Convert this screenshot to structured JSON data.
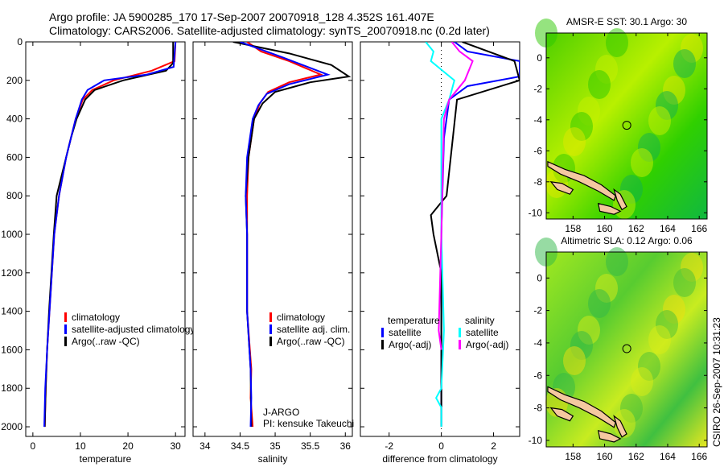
{
  "title_line1": "Argo profile: JA 5900285_170 17-Sep-2007 20070918_128 4.352S 161.407E",
  "title_line2": "Climatology: CARS2006. Satellite-adjusted climatology: synTS_20070918.nc (0.2d later)",
  "footer": "CSIRO 26-Sep-2007 10:31:23",
  "colors": {
    "red": "#ff0000",
    "blue": "#0000ff",
    "black": "#000000",
    "cyan": "#00ffff",
    "magenta": "#ff00ff",
    "land": "#f5c8a0"
  },
  "chart_data": [
    {
      "type": "line",
      "xlabel": "temperature",
      "ylabel": "",
      "xlim": [
        -1.5,
        32
      ],
      "ylim": [
        2050,
        0
      ],
      "xticks": [
        0,
        10,
        20,
        30
      ],
      "yticks": [
        0,
        200,
        400,
        600,
        800,
        1000,
        1200,
        1400,
        1600,
        1800,
        2000
      ],
      "legend": [
        "climatology",
        "satellite-adjusted climatology",
        "Argo(..raw -QC)"
      ],
      "series": [
        {
          "name": "climatology",
          "color": "#ff0000",
          "points": [
            [
              30,
              0
            ],
            [
              29.8,
              100
            ],
            [
              25,
              150
            ],
            [
              17,
              200
            ],
            [
              12.5,
              250
            ],
            [
              10.5,
              300
            ],
            [
              9,
              400
            ],
            [
              8,
              500
            ],
            [
              7,
              600
            ],
            [
              5.5,
              800
            ],
            [
              4.5,
              1000
            ],
            [
              4,
              1200
            ],
            [
              3.5,
              1400
            ],
            [
              3,
              1600
            ],
            [
              2.7,
              1800
            ],
            [
              2.5,
              2000
            ]
          ]
        },
        {
          "name": "Argo(..raw -QC)",
          "color": "#000000",
          "points": [
            [
              29.5,
              0
            ],
            [
              29.5,
              110
            ],
            [
              28,
              150
            ],
            [
              19,
              200
            ],
            [
              13,
              250
            ],
            [
              11,
              300
            ],
            [
              9.2,
              400
            ],
            [
              8,
              500
            ],
            [
              7,
              600
            ],
            [
              5,
              800
            ],
            [
              4.4,
              1000
            ],
            [
              3.9,
              1200
            ],
            [
              3.4,
              1400
            ],
            [
              3,
              1600
            ],
            [
              2.7,
              1800
            ],
            [
              2.5,
              2000
            ]
          ]
        },
        {
          "name": "satellite-adjusted climatology",
          "color": "#0000ff",
          "points": [
            [
              30,
              0
            ],
            [
              29.6,
              130
            ],
            [
              24,
              170
            ],
            [
              15,
              200
            ],
            [
              11.5,
              250
            ],
            [
              10.3,
              300
            ],
            [
              9,
              400
            ],
            [
              8,
              500
            ],
            [
              7,
              600
            ],
            [
              5.5,
              800
            ],
            [
              4.5,
              1000
            ],
            [
              4,
              1200
            ],
            [
              3.5,
              1400
            ],
            [
              3,
              1600
            ],
            [
              2.6,
              1800
            ],
            [
              2.4,
              2000
            ]
          ]
        }
      ]
    },
    {
      "type": "line",
      "xlabel": "salinity",
      "xlim": [
        33.83,
        36.1
      ],
      "ylim": [
        2050,
        0
      ],
      "xticks": [
        34,
        34.5,
        35,
        35.5,
        36
      ],
      "legend": [
        "climatology",
        "satellite adj. clim.",
        "Argo(..raw -QC)"
      ],
      "annotation": [
        "J-ARGO",
        "PI: kensuke Takeuchi"
      ],
      "series": [
        {
          "name": "climatology",
          "color": "#ff0000",
          "points": [
            [
              34.6,
              0
            ],
            [
              34.8,
              50
            ],
            [
              35.2,
              100
            ],
            [
              35.65,
              170
            ],
            [
              35.2,
              210
            ],
            [
              34.9,
              260
            ],
            [
              34.78,
              320
            ],
            [
              34.7,
              400
            ],
            [
              34.62,
              600
            ],
            [
              34.6,
              800
            ],
            [
              34.6,
              1000
            ],
            [
              34.6,
              1400
            ],
            [
              34.66,
              1700
            ],
            [
              34.65,
              1850
            ],
            [
              34.68,
              2000
            ]
          ]
        },
        {
          "name": "Argo(..raw -QC)",
          "color": "#000000",
          "points": [
            [
              34.4,
              0
            ],
            [
              35.2,
              60
            ],
            [
              35.8,
              120
            ],
            [
              36.05,
              180
            ],
            [
              35.5,
              210
            ],
            [
              35,
              260
            ],
            [
              34.82,
              320
            ],
            [
              34.7,
              400
            ],
            [
              34.62,
              600
            ],
            [
              34.58,
              800
            ],
            [
              34.6,
              1000
            ],
            [
              34.6,
              1400
            ],
            [
              34.65,
              1700
            ],
            [
              34.66,
              2000
            ]
          ]
        },
        {
          "name": "satellite adj. clim.",
          "color": "#0000ff",
          "points": [
            [
              34.5,
              0
            ],
            [
              35.1,
              80
            ],
            [
              35.75,
              170
            ],
            [
              35.2,
              220
            ],
            [
              34.88,
              270
            ],
            [
              34.76,
              330
            ],
            [
              34.68,
              400
            ],
            [
              34.6,
              600
            ],
            [
              34.58,
              800
            ],
            [
              34.6,
              1000
            ],
            [
              34.6,
              1400
            ],
            [
              34.65,
              1700
            ],
            [
              34.66,
              1850
            ],
            [
              34.65,
              2000
            ]
          ]
        }
      ]
    },
    {
      "type": "line",
      "xlabel": "difference from climatology",
      "xlim": [
        -3.1,
        3
      ],
      "ylim": [
        2050,
        0
      ],
      "xticks": [
        -2,
        0,
        2
      ],
      "legend": [
        "temperature",
        "satellite",
        "Argo(-adj)",
        "salinity",
        "satellite",
        "Argo(-adj)"
      ],
      "series": [
        {
          "name": "temperature satellite",
          "color": "#0000ff",
          "points": [
            [
              0.5,
              0
            ],
            [
              1,
              50
            ],
            [
              3,
              100
            ],
            [
              3,
              180
            ],
            [
              1,
              230
            ],
            [
              0.3,
              300
            ],
            [
              0.1,
              500
            ],
            [
              0,
              1000
            ],
            [
              0,
              2000
            ]
          ]
        },
        {
          "name": "temperature Argo(-adj)",
          "color": "#000000",
          "points": [
            [
              0.8,
              0
            ],
            [
              2.8,
              100
            ],
            [
              3,
              200
            ],
            [
              0.6,
              300
            ],
            [
              0.2,
              800
            ],
            [
              -0.4,
              900
            ],
            [
              -0.3,
              1000
            ],
            [
              0,
              1200
            ],
            [
              0,
              2000
            ]
          ]
        },
        {
          "name": "salinity satellite",
          "color": "#00ffff",
          "points": [
            [
              -0.6,
              0
            ],
            [
              -0.3,
              50
            ],
            [
              -0.4,
              100
            ],
            [
              0.5,
              200
            ],
            [
              0.3,
              300
            ],
            [
              0,
              400
            ],
            [
              0,
              1000
            ],
            [
              0.1,
              1500
            ],
            [
              0,
              1800
            ],
            [
              -0.2,
              1850
            ],
            [
              0,
              1900
            ],
            [
              0,
              2000
            ]
          ]
        },
        {
          "name": "salinity Argo(-adj)",
          "color": "#ff00ff",
          "points": [
            [
              0.4,
              0
            ],
            [
              0.7,
              50
            ],
            [
              1.2,
              100
            ],
            [
              0.9,
              200
            ],
            [
              0.3,
              300
            ],
            [
              0.1,
              400
            ],
            [
              0,
              1000
            ],
            [
              -0.1,
              1500
            ],
            [
              0,
              1600
            ]
          ]
        }
      ]
    },
    {
      "type": "heatmap",
      "title": "AMSR-E SST: 30.1 Argo: 30",
      "xlim": [
        156.3,
        166.5
      ],
      "ylim": [
        -10.4,
        1.6
      ],
      "xticks": [
        158,
        160,
        162,
        164,
        166
      ],
      "yticks": [
        0,
        -2,
        -4,
        -6,
        -8,
        -10
      ],
      "marker": [
        161.407,
        -4.352
      ]
    },
    {
      "type": "heatmap",
      "title": "Altimetric SLA: 0.12 Argo: 0.06",
      "xlim": [
        156.3,
        166.5
      ],
      "ylim": [
        -10.4,
        1.6
      ],
      "xticks": [
        158,
        160,
        162,
        164,
        166
      ],
      "yticks": [
        0,
        -2,
        -4,
        -6,
        -8,
        -10
      ],
      "marker": [
        161.407,
        -4.352
      ]
    }
  ]
}
